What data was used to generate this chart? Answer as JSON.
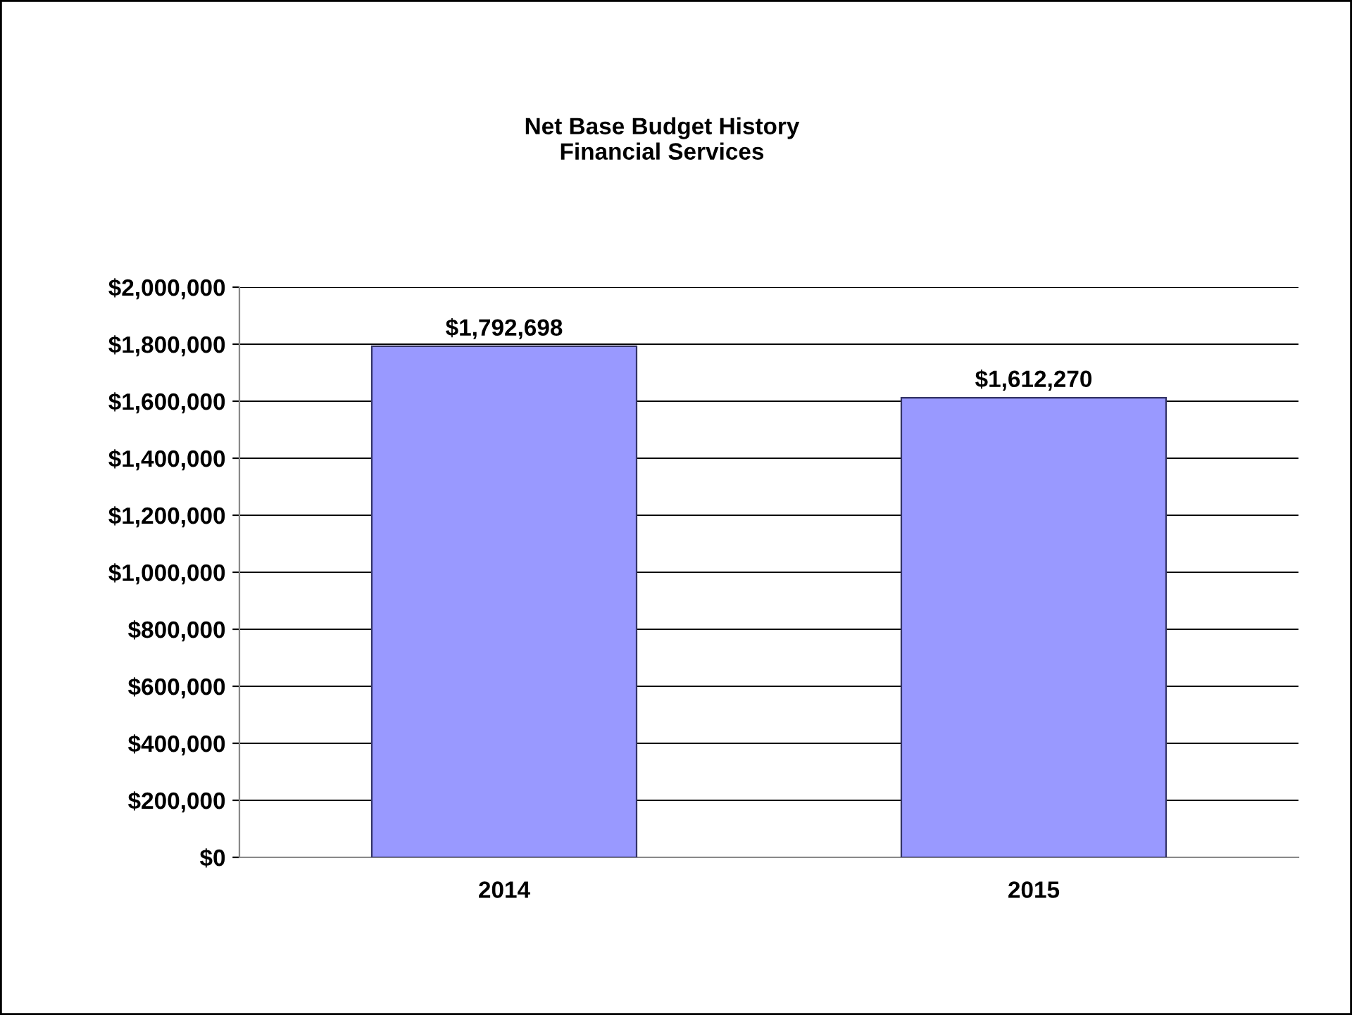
{
  "chart_data": {
    "type": "bar",
    "title": "Net Base Budget History\nFinancial Services",
    "categories": [
      "2014",
      "2015"
    ],
    "values": [
      1792698,
      1612270
    ],
    "color": "#9999ff",
    "value_labels": [
      "$1,792,698",
      "$1,612,270"
    ],
    "ylim": [
      0,
      2000000
    ],
    "yticks": [
      {
        "value": 0,
        "label": "$0"
      },
      {
        "value": 200000,
        "label": "$200,000"
      },
      {
        "value": 400000,
        "label": "$400,000"
      },
      {
        "value": 600000,
        "label": "$600,000"
      },
      {
        "value": 800000,
        "label": "$800,000"
      },
      {
        "value": 1000000,
        "label": "$1,000,000"
      },
      {
        "value": 1200000,
        "label": "$1,200,000"
      },
      {
        "value": 1400000,
        "label": "$1,400,000"
      },
      {
        "value": 1600000,
        "label": "$1,600,000"
      },
      {
        "value": 1800000,
        "label": "$1,800,000"
      },
      {
        "value": 2000000,
        "label": "$2,000,000"
      }
    ],
    "grid": "y",
    "legend": false
  }
}
